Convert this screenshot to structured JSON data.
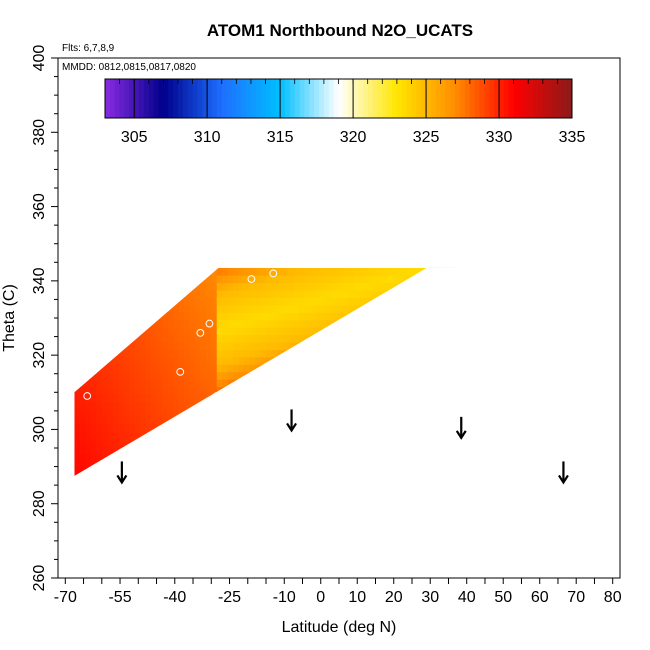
{
  "chart_data": {
    "type": "heatmap",
    "title": "ATOM1 Northbound N2O_UCATS",
    "subtitle_flights": "Flts: 6,7,8,9",
    "subtitle_dates": "MMDD: 0812,0815,0817,0820",
    "xlabel": "Latitude (deg N)",
    "ylabel": "Theta (C)",
    "xlim": [
      -72,
      82
    ],
    "ylim": [
      260,
      400
    ],
    "x_ticks": [
      "-70",
      "-55",
      "-40",
      "-25",
      "-10",
      "0",
      "10",
      "20",
      "30",
      "40",
      "50",
      "60",
      "70",
      "80"
    ],
    "x_tick_values": [
      -70,
      -55,
      -40,
      -25,
      -10,
      0,
      10,
      20,
      30,
      40,
      50,
      60,
      70,
      80
    ],
    "y_ticks": [
      "260",
      "280",
      "300",
      "320",
      "340",
      "360",
      "380",
      "400"
    ],
    "y_tick_values": [
      260,
      280,
      300,
      320,
      340,
      360,
      380,
      400
    ],
    "colorbar": {
      "range": [
        303,
        335
      ],
      "tick_labels": [
        "305",
        "310",
        "315",
        "320",
        "325",
        "330",
        "335"
      ],
      "tick_values": [
        305,
        310,
        315,
        320,
        325,
        330,
        335
      ],
      "colors": [
        "#8a2be2",
        "#00008b",
        "#1e6fff",
        "#00bfff",
        "#ffffff",
        "#ffe600",
        "#ff8c00",
        "#ff0000",
        "#8b1a1a"
      ]
    },
    "field_region": {
      "lat_range": [
        -67.5,
        37
      ],
      "theta_top": 343.5,
      "theta_bottom_left": 287.5,
      "lower_edge_slope_theta_per_deg": 0.58
    },
    "sample_points": [
      {
        "lat": -64,
        "theta": 309
      },
      {
        "lat": -38.5,
        "theta": 315.5
      },
      {
        "lat": -33,
        "theta": 326
      },
      {
        "lat": -30.5,
        "theta": 328.5
      },
      {
        "lat": -28.5,
        "theta": 309
      },
      {
        "lat": -19,
        "theta": 340.5
      },
      {
        "lat": -13,
        "theta": 342
      },
      {
        "lat": 34.5,
        "theta": 343
      }
    ],
    "arrows": [
      {
        "lat": -54.5,
        "theta": 286
      },
      {
        "lat": -8,
        "theta": 300
      },
      {
        "lat": 38.5,
        "theta": 298
      },
      {
        "lat": 66.5,
        "theta": 286
      }
    ]
  }
}
